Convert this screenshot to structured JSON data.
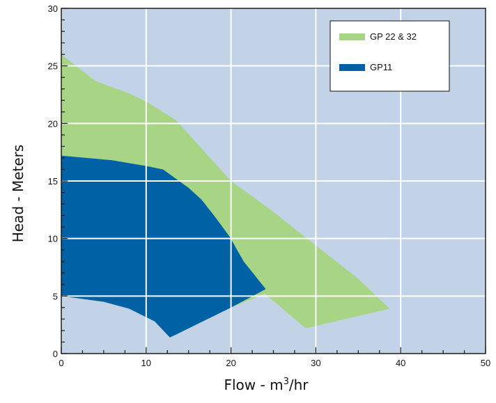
{
  "chart_data": {
    "type": "area",
    "xlabel": "Flow - m³/hr",
    "ylabel": "Head - Meters",
    "xlim": [
      0,
      50
    ],
    "ylim": [
      0,
      30
    ],
    "x_ticks": [
      0,
      10,
      20,
      30,
      40,
      50
    ],
    "y_ticks": [
      0,
      5,
      10,
      15,
      20,
      25,
      30
    ],
    "grid": true,
    "legend_position": "top-right",
    "background_color": "#c2d3e8",
    "series": [
      {
        "name": "GP 22 & 32",
        "color": "#a8d485",
        "polygon": [
          [
            0,
            26
          ],
          [
            4,
            23.7
          ],
          [
            8,
            22.6
          ],
          [
            10,
            21.9
          ],
          [
            13.5,
            20.3
          ],
          [
            20,
            15
          ],
          [
            25,
            12.3
          ],
          [
            30,
            9.4
          ],
          [
            35,
            6.5
          ],
          [
            38.7,
            3.9
          ],
          [
            28.8,
            2.2
          ],
          [
            24,
            5.2
          ],
          [
            20,
            4
          ],
          [
            12.8,
            1.4
          ],
          [
            11,
            2.8
          ],
          [
            8,
            3.9
          ],
          [
            5,
            4.5
          ],
          [
            0,
            5
          ]
        ]
      },
      {
        "name": "GP11",
        "color": "#0062a5",
        "polygon": [
          [
            0,
            17.2
          ],
          [
            6,
            16.8
          ],
          [
            10,
            16.3
          ],
          [
            12,
            16
          ],
          [
            13.5,
            15.2
          ],
          [
            15,
            14.4
          ],
          [
            16.5,
            13.4
          ],
          [
            18,
            12
          ],
          [
            19.8,
            10.2
          ],
          [
            21.5,
            8
          ],
          [
            24.1,
            5.6
          ],
          [
            20,
            4
          ],
          [
            12.8,
            1.4
          ],
          [
            11,
            2.8
          ],
          [
            8,
            3.9
          ],
          [
            5,
            4.5
          ],
          [
            0,
            5
          ]
        ]
      }
    ]
  }
}
